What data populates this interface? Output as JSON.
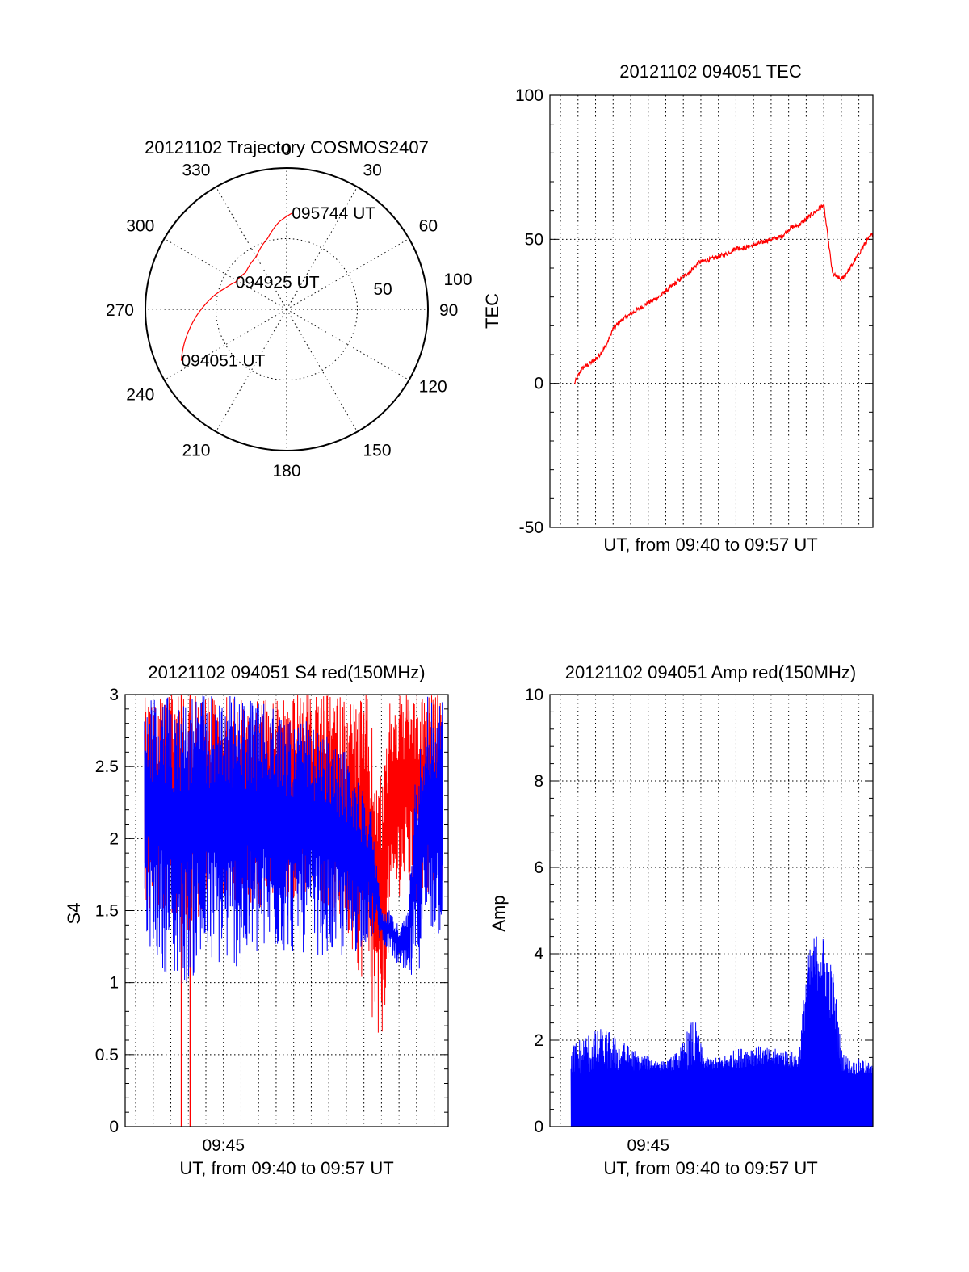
{
  "colors": {
    "red": "#ff0000",
    "blue": "#0000ff",
    "axis": "#000000",
    "background": "#ffffff"
  },
  "chart_data": [
    {
      "id": "trajectory",
      "type": "scatter",
      "coordinate_system": "polar",
      "title": "20121102 Trajectory COSMOS2407",
      "angle_labels": [
        "0",
        "30",
        "60",
        "90",
        "120",
        "150",
        "180",
        "210",
        "240",
        "270",
        "300",
        "330"
      ],
      "radius_labels": [
        "50",
        "100"
      ],
      "radius_range": [
        0,
        100
      ],
      "grid": true,
      "series": [
        {
          "color": "#ff0000",
          "points_azimuth_zenith": [
            [
              244,
              83
            ],
            [
              252,
              76
            ],
            [
              261,
              68
            ],
            [
              273,
              58
            ],
            [
              289,
              46
            ],
            [
              298,
              41
            ],
            [
              312,
              39
            ],
            [
              330,
              43
            ],
            [
              345,
              52
            ],
            [
              355,
              62
            ],
            [
              3,
              68
            ]
          ]
        }
      ],
      "annotations": [
        {
          "text": "094051 UT",
          "azimuth": 244,
          "zenith": 83
        },
        {
          "text": "094925 UT",
          "azimuth": 298,
          "zenith": 41
        },
        {
          "text": "095744 UT",
          "azimuth": 3,
          "zenith": 68
        }
      ]
    },
    {
      "id": "tec",
      "type": "line",
      "title": "20121102 094051 TEC",
      "xlabel": "UT, from 09:40 to 09:57 UT",
      "ylabel": "TEC",
      "xlim_minutes": [
        39.4,
        57.8
      ],
      "ylim": [
        -50,
        100
      ],
      "yticks": [
        "-50",
        "0",
        "50",
        "100"
      ],
      "xticks": [],
      "grid": true,
      "series": [
        {
          "color": "#ff0000",
          "x": [
            40.8,
            41.2,
            41.7,
            42.1,
            42.6,
            43.0,
            43.5,
            44.0,
            44.5,
            45.0,
            45.6,
            46.2,
            46.8,
            47.4,
            47.9,
            48.5,
            49.0,
            49.5,
            50.0,
            50.5,
            51.0,
            51.5,
            52.0,
            52.6,
            53.1,
            53.6,
            54.2,
            54.6,
            55.0,
            55.5,
            56.0,
            56.5,
            57.0,
            57.4,
            57.8
          ],
          "values": [
            0,
            5,
            7,
            9,
            13,
            19,
            22,
            24,
            26,
            28,
            30,
            33,
            36,
            39,
            42,
            43,
            44,
            45,
            47,
            47,
            48,
            49,
            50,
            51,
            54,
            55,
            58,
            60,
            62,
            38,
            36,
            40,
            45,
            49,
            52
          ]
        }
      ]
    },
    {
      "id": "s4",
      "type": "line",
      "title": "20121102 094051 S4 red(150MHz)",
      "xlabel": "UT, from 09:40 to 09:57 UT",
      "ylabel": "S4",
      "xlim_minutes": [
        39.4,
        57.8
      ],
      "ylim": [
        0,
        3
      ],
      "yticks": [
        "0",
        "0.5",
        "1",
        "1.5",
        "2",
        "2.5",
        "3"
      ],
      "xticks": [
        "09:45"
      ],
      "grid": true,
      "series": [
        {
          "color": "#ff0000",
          "profile_minutes": [
            40.5,
            42.0,
            43.0,
            44.0,
            48.0,
            50.0,
            51.0,
            52.0,
            53.2,
            53.9,
            54.5,
            55.0,
            55.6,
            56.0,
            56.5,
            57.5
          ],
          "profile_low": [
            1.5,
            1.5,
            1.2,
            1.6,
            1.5,
            1.6,
            1.5,
            1.3,
            0.8,
            0.38,
            1.3,
            1.6,
            1.6,
            1.5,
            1.6,
            1.6
          ],
          "profile_high": [
            3,
            3,
            3,
            3,
            3,
            3,
            3,
            3,
            3,
            2.4,
            3,
            3,
            3,
            3,
            3,
            3
          ],
          "drops_minutes": [
            42.6,
            43.1
          ],
          "drops_to": [
            0,
            0
          ]
        },
        {
          "color": "#0000ff",
          "profile_minutes": [
            40.5,
            41.5,
            42.5,
            44.0,
            46.0,
            48.0,
            50.0,
            52.0,
            53.5,
            54.0,
            54.5,
            55.0,
            55.5,
            56.0,
            56.5,
            57.5
          ],
          "profile_low": [
            1.3,
            1.1,
            0.95,
            1.1,
            1.1,
            1.2,
            1.2,
            1.15,
            1.3,
            1.3,
            1.2,
            1.1,
            1.0,
            1.0,
            1.3,
            1.3
          ],
          "profile_high": [
            3,
            3,
            3,
            3,
            3,
            2.9,
            2.8,
            2.6,
            2.2,
            1.5,
            1.5,
            1.4,
            1.5,
            2.6,
            3,
            3
          ]
        }
      ]
    },
    {
      "id": "amp",
      "type": "area",
      "title": "20121102 094051 Amp red(150MHz)",
      "xlabel": "UT, from 09:40 to 09:57 UT",
      "ylabel": "Amp",
      "xlim_minutes": [
        39.4,
        57.8
      ],
      "ylim": [
        0,
        10
      ],
      "yticks": [
        "0",
        "2",
        "4",
        "6",
        "8",
        "10"
      ],
      "xticks": [
        "09:45"
      ],
      "grid": true,
      "series": [
        {
          "color": "#0000ff",
          "profile_minutes": [
            40.6,
            41.5,
            42.5,
            43.5,
            44.5,
            46.0,
            46.8,
            47.6,
            48.2,
            49.0,
            50.0,
            51.0,
            52.0,
            53.0,
            53.6,
            54.0,
            54.4,
            54.8,
            55.2,
            55.6,
            56.0,
            56.6,
            57.2,
            57.8
          ],
          "profile_values": [
            1.9,
            2.2,
            2.3,
            2.0,
            1.7,
            1.5,
            1.8,
            2.6,
            1.6,
            1.6,
            1.8,
            1.9,
            1.8,
            1.8,
            1.7,
            3.8,
            4.4,
            4.6,
            4.2,
            3.5,
            1.8,
            1.5,
            1.6,
            1.4
          ],
          "baseline_fill": [
            1.2,
            1.2,
            1.25,
            1.25,
            1.3,
            1.3,
            1.3,
            1.3,
            1.35,
            1.3,
            1.35,
            1.4,
            1.4,
            1.35,
            1.3,
            2.5,
            3.0,
            3.2,
            2.8,
            2.0,
            1.3,
            1.2,
            1.2,
            1.2
          ]
        }
      ]
    }
  ]
}
